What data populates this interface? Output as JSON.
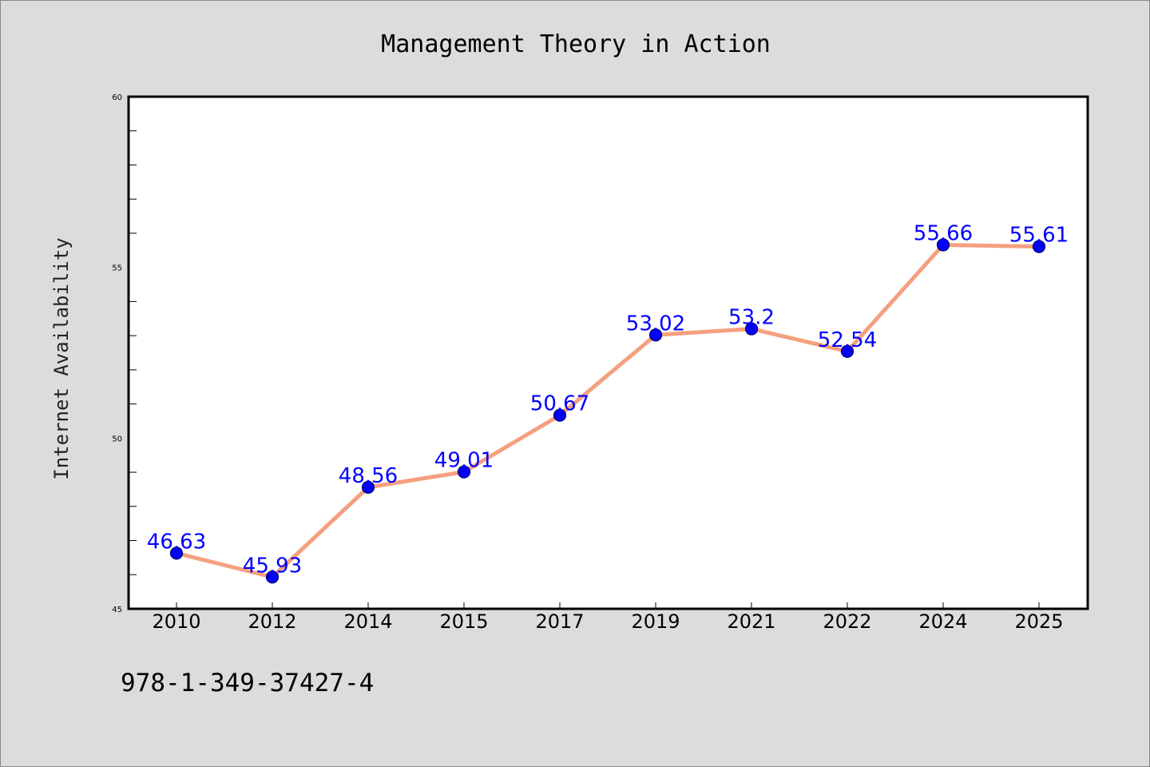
{
  "chart_data": {
    "type": "line",
    "title": "Management Theory in Action",
    "xlabel": "",
    "ylabel": "Internet Availability",
    "categories": [
      "2010",
      "2012",
      "2014",
      "2015",
      "2017",
      "2019",
      "2021",
      "2022",
      "2024",
      "2025"
    ],
    "series": [
      {
        "values": [
          46.63,
          45.93,
          48.56,
          49.01,
          50.67,
          53.02,
          53.2,
          52.54,
          55.66,
          55.61
        ],
        "data_labels": [
          "46.63",
          "45.93",
          "48.56",
          "49.01",
          "50.67",
          "53.02",
          "53.2",
          "52.54",
          "55.66",
          "55.61"
        ]
      }
    ],
    "ylim": [
      45,
      60
    ],
    "yticks": [
      "45",
      "50",
      "55",
      "60"
    ],
    "grid": false,
    "line_color": "#f4a07f",
    "marker_color": "#0000ff",
    "label_color": "#0000ff",
    "background_color": "#dcdcdc"
  },
  "footer": {
    "isbn": "978-1-349-37427-4"
  }
}
